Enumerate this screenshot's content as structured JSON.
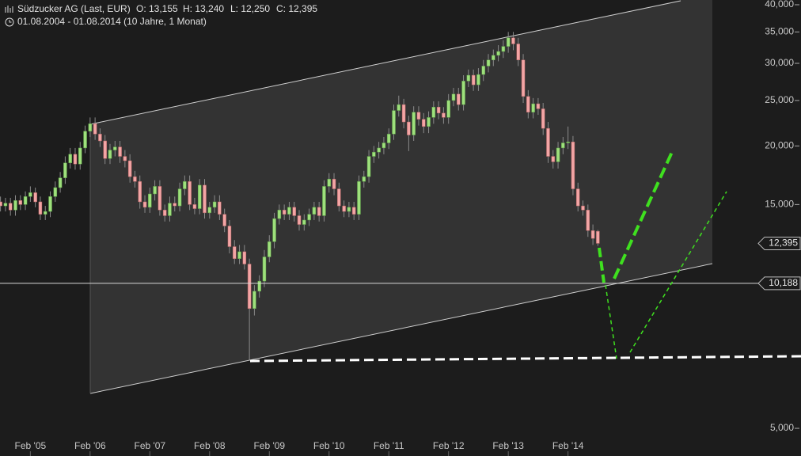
{
  "chart_data": {
    "type": "candlestick",
    "title": "Südzucker AG (Last, EUR)",
    "ohlc_labels": [
      "O: 13,155",
      "H: 13,240",
      "L: 12,250",
      "C: 12,395"
    ],
    "subtitle": "01.08.2004 - 01.08.2014 (10 Jahre, 1 Monat)",
    "log_scale": true,
    "grid": false,
    "up_color": "#9ee07c",
    "down_color": "#f3a5a5",
    "xlim": [
      -0.1,
      160.8
    ],
    "xticks": [
      {
        "value": 6,
        "label": "Feb '05"
      },
      {
        "value": 18,
        "label": "Feb '06"
      },
      {
        "value": 30,
        "label": "Feb '07"
      },
      {
        "value": 42,
        "label": "Feb '08"
      },
      {
        "value": 54,
        "label": "Feb '09"
      },
      {
        "value": 66,
        "label": "Feb '10"
      },
      {
        "value": 78,
        "label": "Feb '11"
      },
      {
        "value": 90,
        "label": "Feb '12"
      },
      {
        "value": 102,
        "label": "Feb '13"
      },
      {
        "value": 114,
        "label": "Feb '14"
      }
    ],
    "ylim": [
      4.365,
      40.94
    ],
    "yticks": [
      {
        "value": 40,
        "label": "40,000"
      },
      {
        "value": 35,
        "label": "35,000"
      },
      {
        "value": 30,
        "label": "30,000"
      },
      {
        "value": 25,
        "label": "25,000"
      },
      {
        "value": 20,
        "label": "20,000"
      },
      {
        "value": 15,
        "label": "15,000"
      },
      {
        "value": 5,
        "label": "5,000"
      }
    ],
    "markers": [
      {
        "value": 12.395,
        "label": "12,395"
      },
      {
        "value": 10.188,
        "label": "10,188"
      }
    ],
    "open": [
      15.2,
      14.9,
      15.1,
      14.6,
      15.3,
      15.0,
      15.6,
      15.9,
      15.2,
      14.3,
      14.5,
      15.6,
      16.3,
      17.1,
      18.4,
      19.2,
      18.3,
      19.8,
      21.5,
      22.3,
      21.2,
      20.5,
      18.8,
      19.6,
      19.9,
      19.0,
      18.6,
      17.2,
      16.8,
      15.2,
      14.8,
      15.8,
      16.4,
      14.6,
      14.2,
      15.1,
      14.9,
      16.2,
      16.8,
      15.0,
      14.7,
      16.5,
      14.4,
      14.8,
      15.2,
      14.3,
      13.5,
      12.2,
      11.5,
      11.9,
      11.2,
      9.0,
      9.8,
      10.3,
      11.6,
      12.5,
      14.0,
      14.6,
      14.3,
      14.8,
      14.2,
      13.6,
      13.9,
      14.3,
      14.8,
      14.2,
      16.4,
      17.0,
      16.2,
      14.9,
      14.5,
      14.8,
      14.3,
      16.8,
      17.2,
      19.0,
      19.4,
      19.8,
      20.3,
      21.2,
      23.8,
      24.5,
      22.5,
      21.1,
      23.6,
      22.8,
      22.0,
      23.0,
      24.2,
      23.5,
      23.0,
      25.0,
      25.8,
      24.5,
      27.5,
      28.3,
      27.0,
      28.4,
      29.6,
      30.5,
      31.2,
      31.8,
      32.6,
      34.0,
      33.0,
      30.5,
      25.5,
      23.6,
      24.6,
      24.0,
      21.8,
      19.0,
      18.5,
      19.8,
      20.3,
      20.4,
      16.2,
      14.9,
      14.6,
      13.2,
      13.155
    ],
    "high": [
      15.6,
      15.5,
      15.5,
      15.7,
      15.7,
      16.0,
      16.4,
      16.3,
      15.6,
      14.9,
      16.0,
      16.8,
      17.6,
      19.0,
      19.8,
      19.8,
      20.4,
      22.1,
      23.0,
      23.0,
      21.8,
      21.1,
      20.2,
      20.5,
      20.5,
      19.6,
      19.2,
      17.7,
      17.3,
      15.7,
      16.3,
      16.9,
      16.9,
      15.0,
      15.6,
      15.6,
      16.7,
      17.3,
      17.3,
      15.5,
      17.0,
      17.0,
      15.2,
      15.7,
      15.7,
      14.7,
      13.9,
      12.6,
      12.3,
      12.3,
      11.5,
      10.1,
      10.6,
      12.0,
      12.9,
      14.4,
      15.0,
      15.0,
      15.2,
      15.2,
      14.6,
      14.3,
      14.7,
      15.2,
      15.2,
      16.9,
      17.5,
      17.5,
      16.7,
      15.3,
      15.2,
      15.2,
      17.3,
      17.7,
      19.6,
      20.0,
      20.4,
      20.9,
      21.8,
      24.5,
      25.6,
      25.2,
      23.2,
      24.3,
      24.3,
      23.5,
      23.7,
      24.9,
      24.9,
      24.2,
      25.8,
      26.6,
      26.6,
      28.3,
      29.1,
      29.1,
      29.3,
      30.5,
      31.4,
      32.1,
      32.8,
      33.6,
      35.0,
      35.0,
      34.0,
      31.4,
      26.3,
      25.3,
      25.3,
      24.7,
      22.5,
      19.6,
      20.4,
      20.9,
      22.0,
      21.0,
      16.7,
      15.3,
      15.0,
      13.6,
      13.24
    ],
    "low": [
      14.5,
      14.5,
      14.2,
      14.2,
      14.6,
      14.6,
      15.2,
      14.8,
      13.9,
      13.9,
      14.1,
      15.2,
      15.9,
      16.6,
      17.9,
      17.8,
      17.8,
      19.3,
      20.9,
      20.6,
      19.9,
      18.3,
      18.3,
      19.0,
      18.4,
      18.0,
      16.7,
      16.3,
      14.7,
      14.4,
      14.4,
      15.3,
      14.2,
      13.8,
      13.8,
      14.5,
      14.5,
      15.7,
      14.6,
      14.3,
      14.3,
      14.0,
      14.0,
      14.4,
      13.9,
      13.1,
      11.8,
      11.2,
      11.2,
      10.9,
      7.0,
      8.7,
      9.5,
      10.0,
      11.3,
      12.1,
      13.6,
      13.9,
      13.9,
      13.8,
      13.2,
      13.2,
      13.5,
      13.9,
      13.8,
      13.8,
      15.9,
      15.7,
      14.5,
      14.1,
      14.1,
      13.9,
      13.9,
      16.3,
      16.7,
      18.4,
      18.8,
      19.2,
      19.7,
      20.6,
      23.1,
      21.8,
      19.5,
      20.5,
      22.1,
      21.3,
      21.3,
      22.3,
      22.8,
      22.3,
      22.3,
      24.3,
      23.8,
      23.8,
      26.7,
      26.2,
      26.2,
      27.5,
      28.7,
      29.6,
      30.3,
      30.8,
      31.6,
      32.0,
      29.6,
      24.7,
      22.9,
      22.9,
      23.3,
      21.1,
      18.4,
      17.9,
      17.9,
      19.2,
      19.7,
      15.7,
      14.5,
      14.2,
      12.8,
      12.3,
      12.25
    ],
    "close": [
      14.9,
      15.1,
      14.6,
      15.3,
      15.0,
      15.6,
      15.9,
      15.2,
      14.3,
      14.5,
      15.6,
      16.3,
      17.1,
      18.4,
      19.2,
      18.3,
      19.8,
      21.5,
      22.3,
      21.2,
      20.5,
      18.8,
      19.6,
      19.9,
      19.0,
      18.6,
      17.2,
      16.8,
      15.2,
      14.8,
      15.8,
      16.4,
      14.6,
      14.2,
      15.1,
      14.9,
      16.2,
      16.8,
      15.0,
      14.7,
      16.5,
      14.4,
      14.8,
      15.2,
      14.3,
      13.5,
      12.2,
      11.5,
      11.9,
      11.2,
      9.0,
      9.8,
      10.3,
      11.6,
      12.5,
      14.0,
      14.6,
      14.3,
      14.8,
      14.2,
      13.6,
      13.9,
      14.3,
      14.8,
      14.2,
      16.4,
      17.0,
      16.2,
      14.9,
      14.5,
      14.8,
      14.3,
      16.8,
      17.2,
      19.0,
      19.4,
      19.8,
      20.3,
      21.2,
      23.8,
      24.5,
      22.5,
      21.1,
      23.6,
      22.8,
      22.0,
      23.0,
      24.2,
      23.5,
      23.0,
      25.0,
      25.8,
      24.5,
      27.5,
      28.3,
      27.0,
      28.4,
      29.6,
      30.5,
      31.2,
      31.8,
      32.6,
      34.0,
      33.0,
      30.5,
      25.5,
      23.6,
      24.6,
      24.0,
      21.8,
      19.0,
      18.5,
      19.8,
      20.3,
      20.4,
      16.2,
      14.9,
      14.6,
      13.2,
      12.7,
      12.395
    ]
  }
}
